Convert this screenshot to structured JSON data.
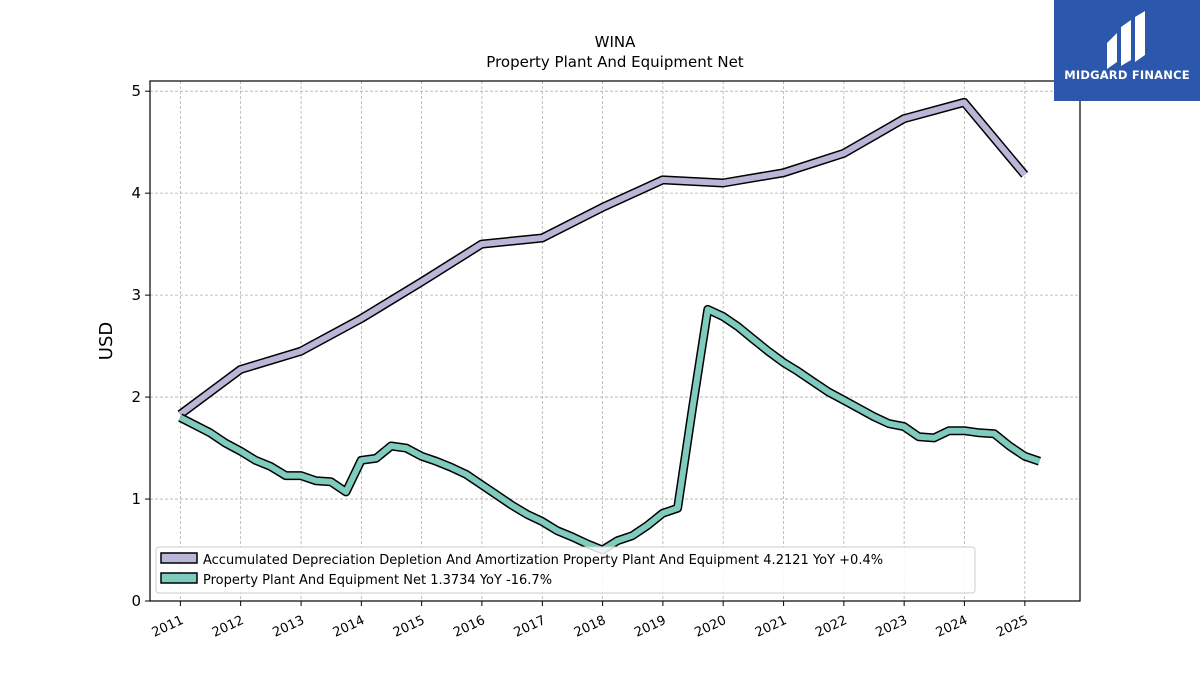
{
  "brand": {
    "name": "MIDGARD FINANCE",
    "bg_color": "#2b57ac",
    "icon": "midgard-logo-icon"
  },
  "chart_data": {
    "type": "line",
    "title": "WINA",
    "subtitle": "Property Plant And Equipment Net",
    "ylabel": "USD",
    "xlabel": "",
    "ylim": [
      0,
      5.1
    ],
    "xlim": [
      "2010-07-01",
      "2025-12-01"
    ],
    "yticks": [
      "0",
      "1",
      "2",
      "3",
      "4",
      "5"
    ],
    "xticks": [
      "2011",
      "2012",
      "2013",
      "2014",
      "2015",
      "2016",
      "2017",
      "2018",
      "2019",
      "2020",
      "2021",
      "2022",
      "2023",
      "2024",
      "2025"
    ],
    "grid": true,
    "legend_position": "lower-left",
    "series": [
      {
        "name": "Accumulated Depreciation Depletion And Amortization Property Plant And Equipment",
        "legend_label": "Accumulated Depreciation Depletion And Amortization Property Plant And Equipment  4.2121 YoY +0.4%",
        "color": "#b9b6d8",
        "points": [
          [
            "2010-12-31",
            1.83
          ],
          [
            "2011-12-31",
            2.27
          ],
          [
            "2012-12-31",
            2.45
          ],
          [
            "2013-12-31",
            2.77
          ],
          [
            "2014-12-31",
            3.13
          ],
          [
            "2015-12-31",
            3.5
          ],
          [
            "2016-12-31",
            3.56
          ],
          [
            "2017-12-31",
            3.86
          ],
          [
            "2018-12-31",
            4.13
          ],
          [
            "2019-12-31",
            4.1
          ],
          [
            "2020-12-31",
            4.2
          ],
          [
            "2021-12-31",
            4.39
          ],
          [
            "2022-12-31",
            4.73
          ],
          [
            "2023-12-31",
            4.89
          ],
          [
            "2024-12-31",
            4.18
          ]
        ]
      },
      {
        "name": "Property Plant And Equipment Net",
        "legend_label": "Property Plant And Equipment Net  1.3734 YoY -16.7%",
        "color": "#7fcbbd",
        "points": [
          [
            "2010-12-31",
            1.8
          ],
          [
            "2011-06-30",
            1.65
          ],
          [
            "2011-09-30",
            1.55
          ],
          [
            "2011-12-31",
            1.47
          ],
          [
            "2012-03-31",
            1.38
          ],
          [
            "2012-06-30",
            1.32
          ],
          [
            "2012-09-30",
            1.23
          ],
          [
            "2012-12-31",
            1.23
          ],
          [
            "2013-03-31",
            1.18
          ],
          [
            "2013-06-30",
            1.17
          ],
          [
            "2013-09-30",
            1.07
          ],
          [
            "2013-12-31",
            1.38
          ],
          [
            "2014-03-31",
            1.4
          ],
          [
            "2014-06-30",
            1.52
          ],
          [
            "2014-09-30",
            1.5
          ],
          [
            "2014-12-31",
            1.42
          ],
          [
            "2015-03-31",
            1.37
          ],
          [
            "2015-06-30",
            1.31
          ],
          [
            "2015-09-30",
            1.24
          ],
          [
            "2015-12-31",
            1.14
          ],
          [
            "2016-03-31",
            1.04
          ],
          [
            "2016-06-30",
            0.94
          ],
          [
            "2016-09-30",
            0.85
          ],
          [
            "2016-12-31",
            0.78
          ],
          [
            "2017-03-31",
            0.69
          ],
          [
            "2017-06-30",
            0.63
          ],
          [
            "2017-09-30",
            0.56
          ],
          [
            "2017-12-31",
            0.5
          ],
          [
            "2018-03-31",
            0.59
          ],
          [
            "2018-06-30",
            0.64
          ],
          [
            "2018-09-30",
            0.74
          ],
          [
            "2018-12-31",
            0.86
          ],
          [
            "2019-03-31",
            0.91
          ],
          [
            "2019-06-30",
            1.9
          ],
          [
            "2019-09-30",
            2.86
          ],
          [
            "2019-12-31",
            2.79
          ],
          [
            "2020-03-31",
            2.69
          ],
          [
            "2020-06-30",
            2.57
          ],
          [
            "2020-09-30",
            2.45
          ],
          [
            "2020-12-31",
            2.34
          ],
          [
            "2021-03-31",
            2.25
          ],
          [
            "2021-06-30",
            2.15
          ],
          [
            "2021-09-30",
            2.05
          ],
          [
            "2021-12-31",
            1.97
          ],
          [
            "2022-03-31",
            1.89
          ],
          [
            "2022-06-30",
            1.81
          ],
          [
            "2022-09-30",
            1.74
          ],
          [
            "2022-12-31",
            1.71
          ],
          [
            "2023-03-31",
            1.61
          ],
          [
            "2023-06-30",
            1.6
          ],
          [
            "2023-09-30",
            1.67
          ],
          [
            "2023-12-31",
            1.67
          ],
          [
            "2024-03-31",
            1.65
          ],
          [
            "2024-06-30",
            1.64
          ],
          [
            "2024-09-30",
            1.52
          ],
          [
            "2024-12-31",
            1.42
          ],
          [
            "2025-03-31",
            1.37
          ]
        ]
      }
    ]
  }
}
